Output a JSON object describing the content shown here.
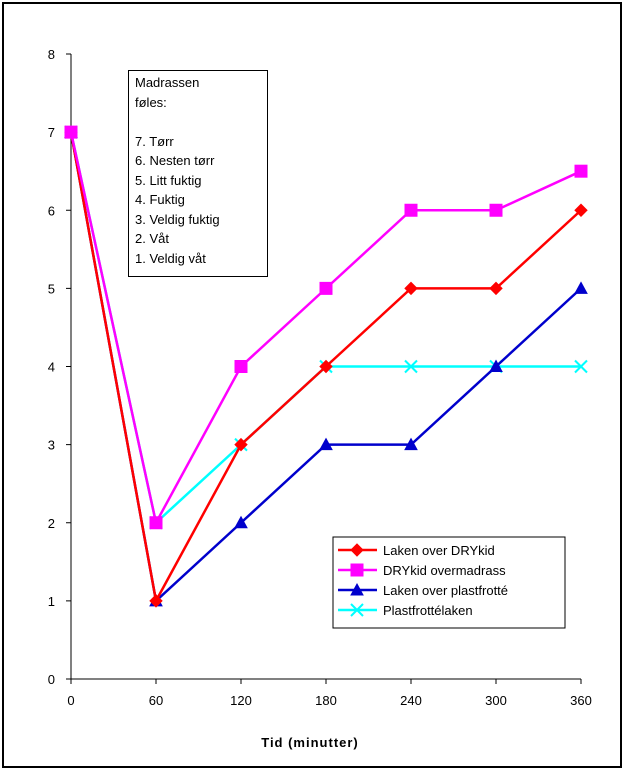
{
  "chart_data": {
    "type": "line",
    "title": "",
    "xlabel": "Tid (minutter)",
    "ylabel": "",
    "x": [
      0,
      60,
      120,
      180,
      240,
      300,
      360
    ],
    "xlim": [
      0,
      360
    ],
    "ylim": [
      0,
      8
    ],
    "x_ticks": [
      "0",
      "60",
      "120",
      "180",
      "240",
      "300",
      "360"
    ],
    "y_ticks": [
      "0",
      "1",
      "2",
      "3",
      "4",
      "5",
      "6",
      "7",
      "8"
    ],
    "grid": false,
    "legend_position": "bottom-right",
    "series": [
      {
        "name": "Laken over DRYkid",
        "color": "#ff0000",
        "marker": "diamond",
        "values": [
          7,
          1,
          3,
          4,
          5,
          5,
          6
        ]
      },
      {
        "name": "DRYkid overmadrass",
        "color": "#ff00ff",
        "marker": "square",
        "values": [
          7,
          2,
          4,
          5,
          6,
          6,
          6.5
        ]
      },
      {
        "name": "Laken over plastfrotté",
        "color": "#0000cc",
        "marker": "triangle",
        "values": [
          7,
          1,
          2,
          3,
          3,
          4,
          5
        ]
      },
      {
        "name": "Plastfrottélaken",
        "color": "#00ffff",
        "marker": "x",
        "values": [
          7,
          2,
          3,
          4,
          4,
          4,
          4
        ]
      }
    ],
    "annotation": {
      "lines": [
        "Madrassen",
        "føles:",
        "",
        "7. Tørr",
        "6. Nesten tørr",
        "5. Litt fuktig",
        "4. Fuktig",
        "3. Veldig fuktig",
        "2. Våt",
        "1. Veldig våt"
      ]
    }
  }
}
